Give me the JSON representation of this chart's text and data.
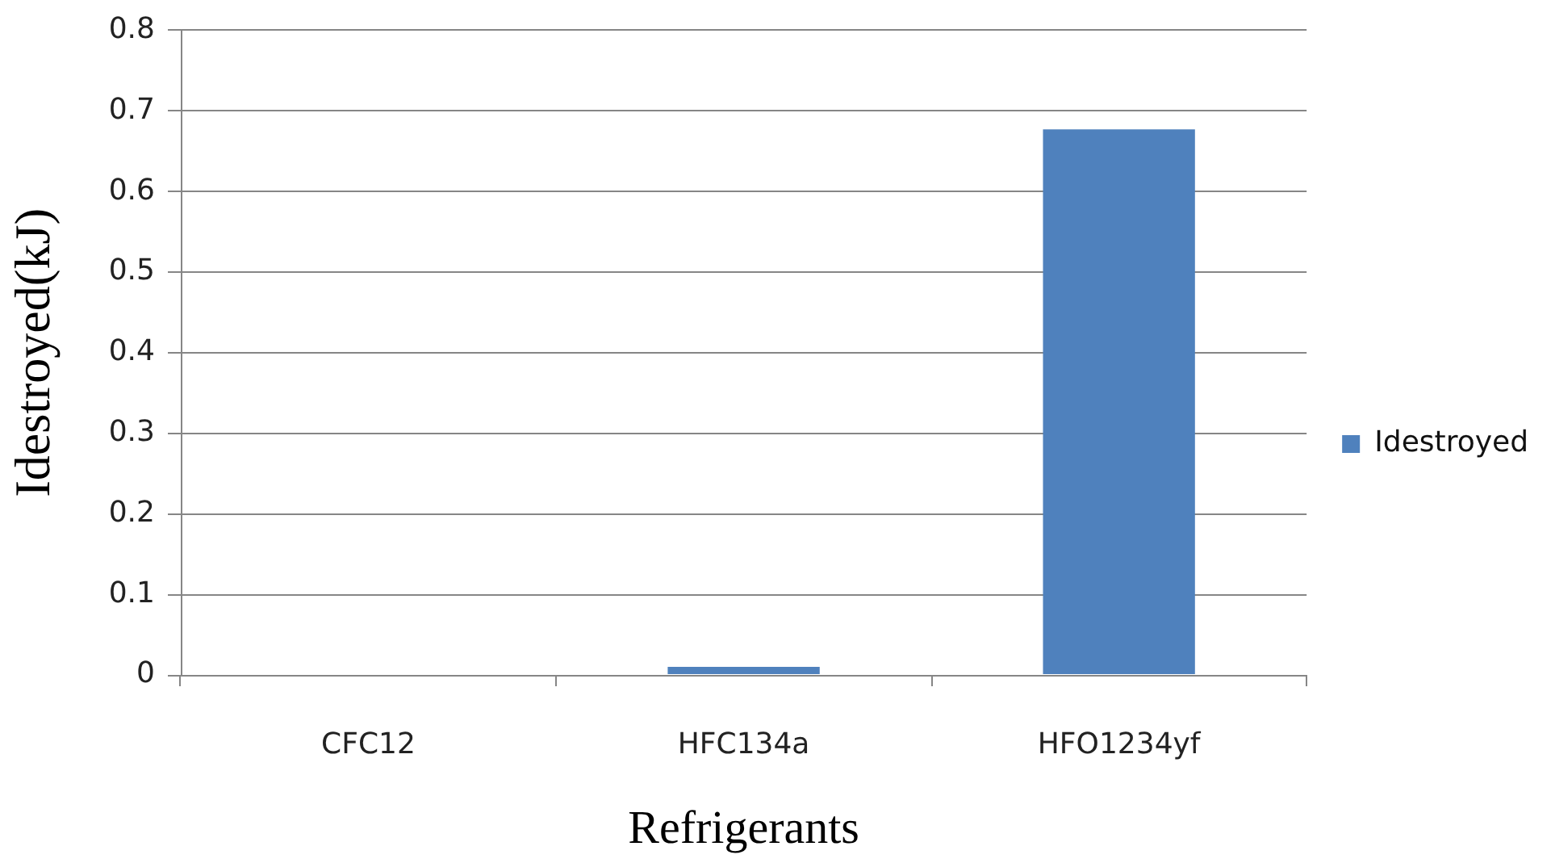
{
  "chart_data": {
    "type": "bar",
    "xlabel": "Refrigerants",
    "ylabel": "Idestroyed(kJ)",
    "categories": [
      "CFC12",
      "HFC134a",
      "HFO1234yf"
    ],
    "series": [
      {
        "name": "Idestroyed",
        "color": "#4f81bd",
        "values": [
          0,
          0.01,
          0.677
        ]
      }
    ],
    "ylim": [
      0,
      0.8
    ],
    "yticks": [
      0,
      0.1,
      0.2,
      0.3,
      0.4,
      0.5,
      0.6,
      0.7,
      0.8
    ],
    "grid": "y",
    "legend": "right"
  }
}
